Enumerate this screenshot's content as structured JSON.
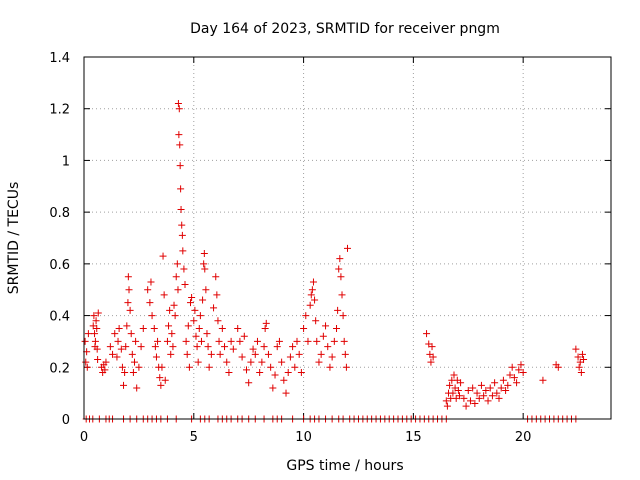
{
  "chart_data": {
    "type": "scatter",
    "title": "Day 164 of 2023, SRMTID for receiver pngm",
    "xlabel": "GPS time / hours",
    "ylabel": "SRMTID / TECUs",
    "xlim": [
      0,
      24
    ],
    "ylim": [
      0,
      1.4
    ],
    "x_ticks": [
      0,
      5,
      10,
      15,
      20
    ],
    "y_ticks": [
      0,
      0.2,
      0.4,
      0.6,
      0.8,
      1,
      1.2,
      1.4
    ],
    "x_tick_labels": [
      "0",
      "5",
      "10",
      "15",
      "20"
    ],
    "y_tick_labels": [
      "0",
      "0.2",
      "0.4",
      "0.6",
      "0.8",
      "1",
      "1.2",
      "1.4"
    ],
    "grid": true,
    "marker": "plus",
    "color": "#e00000",
    "series": [
      {
        "name": "SRMTID",
        "points": [
          [
            0.05,
            0.3
          ],
          [
            0.08,
            0.22
          ],
          [
            0.12,
            0.26
          ],
          [
            0.15,
            0.2
          ],
          [
            0.2,
            0.33
          ],
          [
            0.42,
            0.36
          ],
          [
            0.45,
            0.4
          ],
          [
            0.48,
            0.33
          ],
          [
            0.5,
            0.28
          ],
          [
            0.52,
            0.3
          ],
          [
            0.55,
            0.38
          ],
          [
            0.58,
            0.35
          ],
          [
            0.6,
            0.27
          ],
          [
            0.62,
            0.23
          ],
          [
            0.65,
            0.41
          ],
          [
            0.8,
            0.2
          ],
          [
            0.85,
            0.18
          ],
          [
            0.9,
            0.21
          ],
          [
            0.95,
            0.19
          ],
          [
            1.0,
            0.22
          ],
          [
            1.2,
            0.28
          ],
          [
            1.3,
            0.25
          ],
          [
            1.4,
            0.33
          ],
          [
            1.5,
            0.24
          ],
          [
            1.55,
            0.3
          ],
          [
            1.6,
            0.35
          ],
          [
            1.7,
            0.27
          ],
          [
            1.75,
            0.2
          ],
          [
            1.8,
            0.13
          ],
          [
            1.85,
            0.18
          ],
          [
            1.9,
            0.28
          ],
          [
            1.95,
            0.36
          ],
          [
            2.0,
            0.45
          ],
          [
            2.02,
            0.55
          ],
          [
            2.05,
            0.5
          ],
          [
            2.1,
            0.42
          ],
          [
            2.15,
            0.33
          ],
          [
            2.2,
            0.25
          ],
          [
            2.25,
            0.18
          ],
          [
            2.3,
            0.22
          ],
          [
            2.35,
            0.3
          ],
          [
            2.4,
            0.12
          ],
          [
            2.5,
            0.2
          ],
          [
            2.6,
            0.28
          ],
          [
            2.7,
            0.35
          ],
          [
            2.9,
            0.5
          ],
          [
            3.0,
            0.45
          ],
          [
            3.05,
            0.53
          ],
          [
            3.1,
            0.4
          ],
          [
            3.2,
            0.35
          ],
          [
            3.25,
            0.28
          ],
          [
            3.3,
            0.24
          ],
          [
            3.35,
            0.3
          ],
          [
            3.4,
            0.2
          ],
          [
            3.45,
            0.16
          ],
          [
            3.5,
            0.13
          ],
          [
            3.55,
            0.2
          ],
          [
            3.6,
            0.63
          ],
          [
            3.65,
            0.48
          ],
          [
            3.7,
            0.15
          ],
          [
            3.8,
            0.3
          ],
          [
            3.85,
            0.36
          ],
          [
            3.9,
            0.42
          ],
          [
            3.95,
            0.25
          ],
          [
            4.0,
            0.33
          ],
          [
            4.05,
            0.28
          ],
          [
            4.1,
            0.44
          ],
          [
            4.15,
            0.4
          ],
          [
            4.2,
            0.55
          ],
          [
            4.25,
            0.6
          ],
          [
            4.28,
            0.5
          ],
          [
            4.3,
            1.22
          ],
          [
            4.32,
            1.1
          ],
          [
            4.34,
            1.2
          ],
          [
            4.36,
            1.06
          ],
          [
            4.38,
            0.98
          ],
          [
            4.4,
            0.89
          ],
          [
            4.42,
            0.81
          ],
          [
            4.45,
            0.75
          ],
          [
            4.48,
            0.71
          ],
          [
            4.5,
            0.65
          ],
          [
            4.55,
            0.58
          ],
          [
            4.6,
            0.52
          ],
          [
            4.65,
            0.3
          ],
          [
            4.7,
            0.25
          ],
          [
            4.75,
            0.36
          ],
          [
            4.8,
            0.2
          ],
          [
            4.85,
            0.45
          ],
          [
            4.9,
            0.47
          ],
          [
            5.0,
            0.38
          ],
          [
            5.05,
            0.42
          ],
          [
            5.1,
            0.32
          ],
          [
            5.15,
            0.28
          ],
          [
            5.2,
            0.22
          ],
          [
            5.25,
            0.35
          ],
          [
            5.3,
            0.4
          ],
          [
            5.35,
            0.3
          ],
          [
            5.4,
            0.46
          ],
          [
            5.45,
            0.6
          ],
          [
            5.48,
            0.64
          ],
          [
            5.5,
            0.58
          ],
          [
            5.55,
            0.5
          ],
          [
            5.6,
            0.33
          ],
          [
            5.65,
            0.28
          ],
          [
            5.7,
            0.2
          ],
          [
            5.8,
            0.25
          ],
          [
            5.9,
            0.43
          ],
          [
            6.0,
            0.55
          ],
          [
            6.05,
            0.48
          ],
          [
            6.1,
            0.38
          ],
          [
            6.15,
            0.3
          ],
          [
            6.2,
            0.25
          ],
          [
            6.3,
            0.35
          ],
          [
            6.4,
            0.28
          ],
          [
            6.5,
            0.22
          ],
          [
            6.6,
            0.18
          ],
          [
            6.7,
            0.3
          ],
          [
            6.8,
            0.27
          ],
          [
            7.0,
            0.35
          ],
          [
            7.1,
            0.3
          ],
          [
            7.2,
            0.24
          ],
          [
            7.3,
            0.32
          ],
          [
            7.4,
            0.19
          ],
          [
            7.5,
            0.14
          ],
          [
            7.6,
            0.22
          ],
          [
            7.7,
            0.27
          ],
          [
            7.8,
            0.25
          ],
          [
            7.9,
            0.3
          ],
          [
            8.0,
            0.18
          ],
          [
            8.1,
            0.22
          ],
          [
            8.2,
            0.28
          ],
          [
            8.25,
            0.35
          ],
          [
            8.3,
            0.37
          ],
          [
            8.4,
            0.25
          ],
          [
            8.5,
            0.2
          ],
          [
            8.6,
            0.12
          ],
          [
            8.7,
            0.17
          ],
          [
            8.8,
            0.28
          ],
          [
            8.9,
            0.3
          ],
          [
            9.0,
            0.22
          ],
          [
            9.1,
            0.15
          ],
          [
            9.2,
            0.1
          ],
          [
            9.3,
            0.18
          ],
          [
            9.4,
            0.24
          ],
          [
            9.5,
            0.28
          ],
          [
            9.6,
            0.2
          ],
          [
            9.7,
            0.3
          ],
          [
            9.8,
            0.25
          ],
          [
            9.9,
            0.18
          ],
          [
            10.0,
            0.35
          ],
          [
            10.1,
            0.4
          ],
          [
            10.2,
            0.3
          ],
          [
            10.3,
            0.44
          ],
          [
            10.35,
            0.48
          ],
          [
            10.4,
            0.5
          ],
          [
            10.45,
            0.53
          ],
          [
            10.5,
            0.46
          ],
          [
            10.55,
            0.38
          ],
          [
            10.6,
            0.3
          ],
          [
            10.7,
            0.22
          ],
          [
            10.8,
            0.25
          ],
          [
            10.9,
            0.32
          ],
          [
            11.0,
            0.36
          ],
          [
            11.1,
            0.28
          ],
          [
            11.2,
            0.2
          ],
          [
            11.3,
            0.24
          ],
          [
            11.4,
            0.3
          ],
          [
            11.5,
            0.35
          ],
          [
            11.55,
            0.42
          ],
          [
            11.6,
            0.58
          ],
          [
            11.65,
            0.62
          ],
          [
            11.7,
            0.55
          ],
          [
            11.75,
            0.48
          ],
          [
            11.8,
            0.4
          ],
          [
            11.85,
            0.3
          ],
          [
            11.9,
            0.25
          ],
          [
            11.95,
            0.2
          ],
          [
            12.0,
            0.66
          ],
          [
            15.6,
            0.33
          ],
          [
            15.7,
            0.29
          ],
          [
            15.75,
            0.25
          ],
          [
            15.8,
            0.22
          ],
          [
            15.85,
            0.28
          ],
          [
            15.9,
            0.24
          ],
          [
            16.5,
            0.07
          ],
          [
            16.55,
            0.05
          ],
          [
            16.6,
            0.1
          ],
          [
            16.65,
            0.13
          ],
          [
            16.7,
            0.08
          ],
          [
            16.75,
            0.15
          ],
          [
            16.8,
            0.1
          ],
          [
            16.85,
            0.17
          ],
          [
            16.9,
            0.12
          ],
          [
            16.95,
            0.08
          ],
          [
            17.0,
            0.15
          ],
          [
            17.05,
            0.11
          ],
          [
            17.1,
            0.09
          ],
          [
            17.15,
            0.14
          ],
          [
            17.3,
            0.08
          ],
          [
            17.4,
            0.05
          ],
          [
            17.5,
            0.11
          ],
          [
            17.6,
            0.07
          ],
          [
            17.7,
            0.12
          ],
          [
            17.8,
            0.06
          ],
          [
            17.9,
            0.1
          ],
          [
            18.0,
            0.08
          ],
          [
            18.1,
            0.13
          ],
          [
            18.2,
            0.09
          ],
          [
            18.3,
            0.11
          ],
          [
            18.4,
            0.07
          ],
          [
            18.5,
            0.12
          ],
          [
            18.6,
            0.09
          ],
          [
            18.7,
            0.14
          ],
          [
            18.8,
            0.1
          ],
          [
            18.9,
            0.08
          ],
          [
            19.0,
            0.12
          ],
          [
            19.1,
            0.15
          ],
          [
            19.2,
            0.11
          ],
          [
            19.3,
            0.13
          ],
          [
            19.4,
            0.17
          ],
          [
            19.5,
            0.2
          ],
          [
            19.6,
            0.16
          ],
          [
            19.7,
            0.14
          ],
          [
            19.8,
            0.19
          ],
          [
            19.9,
            0.21
          ],
          [
            20.0,
            0.18
          ],
          [
            20.9,
            0.15
          ],
          [
            21.5,
            0.21
          ],
          [
            21.6,
            0.2
          ],
          [
            22.4,
            0.27
          ],
          [
            22.5,
            0.24
          ],
          [
            22.55,
            0.2
          ],
          [
            22.6,
            0.22
          ],
          [
            22.65,
            0.18
          ],
          [
            22.7,
            0.25
          ],
          [
            22.75,
            0.23
          ],
          [
            0.1,
            0.0
          ],
          [
            0.25,
            0.0
          ],
          [
            0.4,
            0.0
          ],
          [
            0.7,
            0.0
          ],
          [
            1.0,
            0.0
          ],
          [
            1.15,
            0.0
          ],
          [
            1.3,
            0.0
          ],
          [
            1.8,
            0.0
          ],
          [
            2.1,
            0.0
          ],
          [
            2.4,
            0.0
          ],
          [
            2.7,
            0.0
          ],
          [
            2.9,
            0.0
          ],
          [
            3.1,
            0.0
          ],
          [
            3.3,
            0.0
          ],
          [
            3.5,
            0.0
          ],
          [
            3.8,
            0.0
          ],
          [
            4.2,
            0.0
          ],
          [
            4.9,
            0.0
          ],
          [
            5.3,
            0.0
          ],
          [
            5.5,
            0.0
          ],
          [
            5.7,
            0.0
          ],
          [
            6.1,
            0.0
          ],
          [
            6.3,
            0.0
          ],
          [
            6.5,
            0.0
          ],
          [
            6.7,
            0.0
          ],
          [
            7.0,
            0.0
          ],
          [
            7.2,
            0.0
          ],
          [
            7.5,
            0.0
          ],
          [
            7.8,
            0.0
          ],
          [
            8.2,
            0.0
          ],
          [
            8.6,
            0.0
          ],
          [
            8.8,
            0.0
          ],
          [
            9.0,
            0.0
          ],
          [
            9.5,
            0.0
          ],
          [
            10.0,
            0.0
          ],
          [
            10.3,
            0.0
          ],
          [
            10.5,
            0.0
          ],
          [
            10.7,
            0.0
          ],
          [
            11.0,
            0.0
          ],
          [
            11.3,
            0.0
          ],
          [
            11.6,
            0.0
          ],
          [
            11.8,
            0.0
          ],
          [
            12.1,
            0.0
          ],
          [
            12.3,
            0.0
          ],
          [
            12.5,
            0.0
          ],
          [
            12.7,
            0.0
          ],
          [
            12.9,
            0.0
          ],
          [
            13.1,
            0.0
          ],
          [
            13.3,
            0.0
          ],
          [
            13.5,
            0.0
          ],
          [
            13.7,
            0.0
          ],
          [
            13.9,
            0.0
          ],
          [
            14.1,
            0.0
          ],
          [
            14.3,
            0.0
          ],
          [
            14.5,
            0.0
          ],
          [
            14.7,
            0.0
          ],
          [
            14.9,
            0.0
          ],
          [
            15.1,
            0.0
          ],
          [
            15.3,
            0.0
          ],
          [
            15.5,
            0.0
          ],
          [
            15.7,
            0.0
          ],
          [
            15.9,
            0.0
          ],
          [
            16.1,
            0.0
          ],
          [
            16.3,
            0.0
          ],
          [
            16.5,
            0.0
          ],
          [
            20.2,
            0.0
          ],
          [
            20.4,
            0.0
          ],
          [
            20.6,
            0.0
          ],
          [
            20.8,
            0.0
          ],
          [
            21.0,
            0.0
          ],
          [
            21.2,
            0.0
          ],
          [
            21.4,
            0.0
          ],
          [
            21.6,
            0.0
          ],
          [
            21.8,
            0.0
          ],
          [
            22.0,
            0.0
          ],
          [
            22.2,
            0.0
          ],
          [
            22.4,
            0.0
          ]
        ]
      }
    ]
  }
}
